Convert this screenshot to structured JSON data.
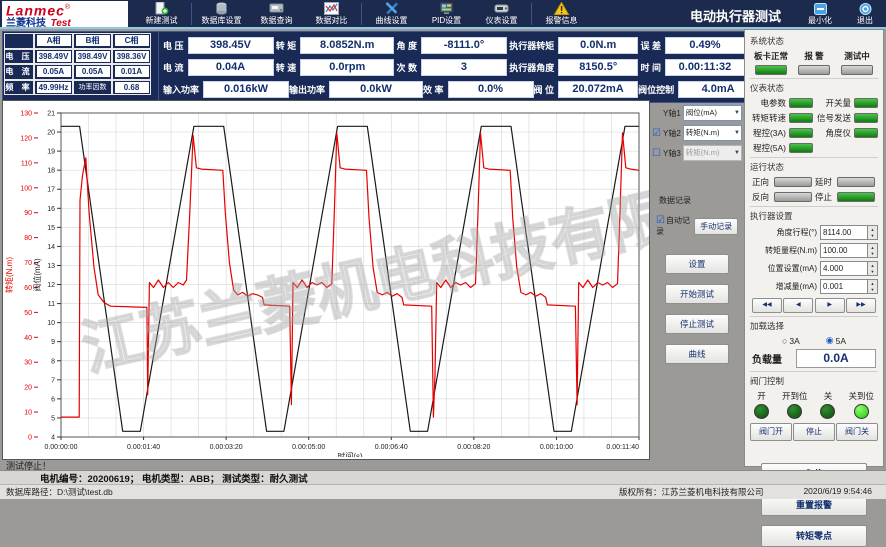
{
  "colors": {
    "titlebar": "#1c2a4e",
    "panel_navy": "#182a55",
    "accent_line": "#8ec9e4",
    "curve_red": "#e60000",
    "curve_black": "#1a1a1a",
    "led_green": "#2fae2f",
    "indicator_bright": "#39e02e",
    "value_text": "#12306e"
  },
  "titlebar": {
    "logo_line1": "Lanmec",
    "logo_reg": "®",
    "logo_line2_blue": "兰菱科技",
    "logo_line2_red": "Test",
    "title": "电动执行器测试",
    "minimize": "最小化",
    "exit": "退出",
    "menu": [
      {
        "label": "新建测试"
      },
      {
        "label": "数据库设置"
      },
      {
        "label": "数据查询"
      },
      {
        "label": "数据对比"
      },
      {
        "label": "曲线设置"
      },
      {
        "label": "PID设置"
      },
      {
        "label": "仪表设置"
      },
      {
        "label": "报警信息"
      }
    ]
  },
  "phase_table": {
    "headers": [
      "A相",
      "B相",
      "C相"
    ],
    "rows": [
      {
        "label": "电 压",
        "values": [
          "398.49V",
          "398.49V",
          "398.36V"
        ]
      },
      {
        "label": "电 流",
        "values": [
          "0.05A",
          "0.05A",
          "0.01A"
        ]
      },
      {
        "label": "频 率",
        "values": [
          "49.99Hz",
          "功率因数",
          "0.68"
        ]
      }
    ]
  },
  "readouts": {
    "rows": [
      {
        "cells": [
          {
            "label": "电  压",
            "value": "398.45V"
          },
          {
            "label": "转  矩",
            "value": "8.0852N.m"
          },
          {
            "label": "角  度",
            "value": "-8111.0°"
          },
          {
            "label": "执行器转矩",
            "value": "0.0N.m"
          },
          {
            "label": "误  差",
            "value": "0.49%"
          }
        ]
      },
      {
        "cells": [
          {
            "label": "电  流",
            "value": "0.04A"
          },
          {
            "label": "转  速",
            "value": "0.0rpm"
          },
          {
            "label": "次  数",
            "value": "3"
          },
          {
            "label": "执行器角度",
            "value": "8150.5°"
          },
          {
            "label": "时  间",
            "value": "0.00:11:32"
          }
        ]
      },
      {
        "cells": [
          {
            "label": "输入功率",
            "value": "0.016kW"
          },
          {
            "label": "输出功率",
            "value": "0.0kW"
          },
          {
            "label": "效  率",
            "value": "0.0%"
          },
          {
            "label": "阀  位",
            "value": "20.072mA"
          },
          {
            "label": "阀位控制",
            "value": "4.0mA"
          }
        ]
      }
    ]
  },
  "curve_panel": {
    "axes": [
      {
        "label": "Y轴1",
        "value": "阀位(mA)",
        "enabled": true,
        "has_checkbox": false,
        "checked": false
      },
      {
        "label": "Y轴2",
        "value": "转矩(N.m)",
        "enabled": true,
        "has_checkbox": true,
        "checked": true
      },
      {
        "label": "Y轴3",
        "value": "转矩(N.m)",
        "enabled": false,
        "has_checkbox": true,
        "checked": false
      }
    ],
    "data_record": {
      "title": "数据记录",
      "auto_label": "自动记录",
      "auto_checked": true,
      "manual_button": "手动记录"
    },
    "buttons": [
      "设置",
      "开始测试",
      "停止测试",
      "曲线"
    ]
  },
  "sidebar": {
    "system_status": {
      "title": "系统状态",
      "leds": [
        {
          "label": "板卡正常",
          "on": true
        },
        {
          "label": "报 警",
          "on": false
        },
        {
          "label": "测试中",
          "on": false
        }
      ]
    },
    "meter_status": {
      "title": "仪表状态",
      "leds": [
        {
          "label": "电参数",
          "on": true
        },
        {
          "label": "开关量",
          "on": true
        },
        {
          "label": "转矩转速",
          "on": true
        },
        {
          "label": "信号发送",
          "on": true
        },
        {
          "label": "程控(3A)",
          "on": true
        },
        {
          "label": "角度仪",
          "on": true
        },
        {
          "label": "程控(5A)",
          "on": true
        }
      ]
    },
    "run_status": {
      "title": "运行状态",
      "leds": [
        {
          "label": "正向",
          "on": false
        },
        {
          "label": "延时",
          "on": false
        },
        {
          "label": "反向",
          "on": false
        },
        {
          "label": "停止",
          "on": true
        }
      ]
    },
    "actuator_settings": {
      "title": "执行器设置",
      "fields": [
        {
          "label": "角度行程(°)",
          "value": "8114.00"
        },
        {
          "label": "转矩量程(N.m)",
          "value": "100.00"
        },
        {
          "label": "位置设置(mA)",
          "value": "4.000"
        },
        {
          "label": "增减量(mA)",
          "value": "0.001"
        }
      ],
      "nav_buttons": [
        "◀◀",
        "◀",
        "▶",
        "▶▶"
      ]
    },
    "load_select": {
      "title": "加载选择",
      "options": [
        {
          "label": "3A",
          "selected": false
        },
        {
          "label": "5A",
          "selected": true
        }
      ],
      "load_label": "负载量",
      "load_value": "0.0A"
    },
    "valve_control": {
      "title": "阀门控制",
      "indicators": [
        {
          "label": "开",
          "state": "dim"
        },
        {
          "label": "开到位",
          "state": "dim"
        },
        {
          "label": "关",
          "state": "dim"
        },
        {
          "label": "关到位",
          "state": "bright"
        }
      ],
      "buttons": [
        "阀门开",
        "停止",
        "阀门关"
      ]
    },
    "action_buttons": [
      "急停",
      "重置报警",
      "转矩零点"
    ]
  },
  "status_bar": {
    "test_status": "测试停止！",
    "motor_info": "电机编号：20200619；  电机类型：ABB；  测试类型：耐久测试",
    "db_path_label": "数据库路径：",
    "db_path": "D:\\测试\\test.db",
    "copyright": "版权所有：江苏兰菱机电科技有限公司",
    "datetime": "2020/6/19 9:54:46"
  },
  "chart_data": {
    "type": "line",
    "xlabel": "时间(s)",
    "x_range_s": [
      0,
      700
    ],
    "x_ticks": [
      "0.00:00:00",
      "0.00:01:40",
      "0.00:03:20",
      "0.00:05:00",
      "0.00:06:40",
      "0.00:08:20",
      "0.00:10:00",
      "0.00:11:40"
    ],
    "grid": true,
    "watermark": "江苏兰菱机电科技有限公司",
    "axes": [
      {
        "label": "转矩(N.m)",
        "range": [
          0,
          130
        ],
        "tick_step": 10,
        "color": "#e60000"
      },
      {
        "label": "阀位(mA)",
        "range": [
          4,
          21
        ],
        "tick_step": 1,
        "color": "#222222"
      }
    ],
    "series": [
      {
        "name": "阀位(mA)",
        "axis": 1,
        "color": "#1a1a1a",
        "points": [
          [
            0,
            20.3
          ],
          [
            22.5,
            20.3
          ],
          [
            74.7,
            4.3
          ],
          [
            96,
            4.3
          ],
          [
            161,
            20.3
          ],
          [
            197,
            20.3
          ],
          [
            249,
            4.3
          ],
          [
            270,
            4.3
          ],
          [
            335,
            20.3
          ],
          [
            371,
            20.3
          ],
          [
            423,
            4.3
          ],
          [
            444,
            4.3
          ],
          [
            509,
            20.3
          ],
          [
            545,
            20.3
          ],
          [
            597,
            4.3
          ],
          [
            618,
            4.3
          ],
          [
            683,
            20.3
          ],
          [
            700,
            20.3
          ]
        ]
      },
      {
        "name": "转矩(N.m)",
        "axis": 0,
        "color": "#e60000",
        "points": [
          [
            0,
            8
          ],
          [
            22,
            8
          ],
          [
            23,
            95
          ],
          [
            26,
            105
          ],
          [
            30,
            112
          ],
          [
            34,
            90
          ],
          [
            40,
            68
          ],
          [
            45,
            57
          ],
          [
            52,
            54
          ],
          [
            60,
            52.5
          ],
          [
            104,
            52
          ],
          [
            105,
            17
          ],
          [
            107,
            62
          ],
          [
            112,
            60
          ],
          [
            118,
            63
          ],
          [
            124,
            60
          ],
          [
            130,
            62
          ],
          [
            136,
            60
          ],
          [
            142,
            62
          ],
          [
            148,
            61
          ],
          [
            152,
            63
          ],
          [
            156,
            90
          ],
          [
            160,
            121
          ],
          [
            164,
            108
          ],
          [
            170,
            107.5
          ],
          [
            196,
            107
          ],
          [
            199,
            90
          ],
          [
            204,
            70
          ],
          [
            209,
            59
          ],
          [
            214,
            57
          ],
          [
            220,
            58
          ],
          [
            226,
            56.5
          ],
          [
            232,
            57.5
          ],
          [
            238,
            57
          ],
          [
            244,
            56
          ],
          [
            246,
            53
          ],
          [
            277,
            52.5
          ],
          [
            279,
            13
          ],
          [
            281,
            62
          ],
          [
            286,
            60
          ],
          [
            292,
            63
          ],
          [
            298,
            60
          ],
          [
            304,
            62
          ],
          [
            310,
            61
          ],
          [
            316,
            62
          ],
          [
            322,
            60
          ],
          [
            328,
            61.5
          ],
          [
            331,
            90
          ],
          [
            334,
            122
          ],
          [
            338,
            108
          ],
          [
            344,
            107.5
          ],
          [
            370,
            107
          ],
          [
            373,
            88
          ],
          [
            378,
            68
          ],
          [
            383,
            58
          ],
          [
            389,
            57
          ],
          [
            395,
            58
          ],
          [
            401,
            56.5
          ],
          [
            407,
            57.5
          ],
          [
            413,
            56
          ],
          [
            415,
            53
          ],
          [
            449,
            52.5
          ],
          [
            451,
            8
          ],
          [
            453,
            25
          ],
          [
            455,
            62
          ],
          [
            460,
            60
          ],
          [
            466,
            63
          ],
          [
            472,
            60
          ],
          [
            478,
            62
          ],
          [
            484,
            61
          ],
          [
            490,
            62
          ],
          [
            496,
            60
          ],
          [
            502,
            61.5
          ],
          [
            505,
            90
          ],
          [
            508,
            122
          ],
          [
            512,
            108
          ],
          [
            518,
            107.5
          ],
          [
            544,
            107
          ],
          [
            547,
            88
          ],
          [
            552,
            68
          ],
          [
            557,
            58
          ],
          [
            563,
            57
          ],
          [
            569,
            58
          ],
          [
            575,
            56.5
          ],
          [
            581,
            57.5
          ],
          [
            587,
            56
          ],
          [
            589,
            53
          ],
          [
            623,
            52.5
          ],
          [
            625,
            13
          ],
          [
            627,
            62
          ],
          [
            632,
            60
          ],
          [
            638,
            63
          ],
          [
            644,
            60
          ],
          [
            650,
            62
          ],
          [
            656,
            61
          ],
          [
            662,
            62
          ],
          [
            668,
            60
          ],
          [
            674,
            61.5
          ],
          [
            677,
            90
          ],
          [
            680,
            122
          ],
          [
            684,
            108
          ],
          [
            690,
            107.5
          ],
          [
            700,
            107
          ]
        ]
      }
    ]
  }
}
